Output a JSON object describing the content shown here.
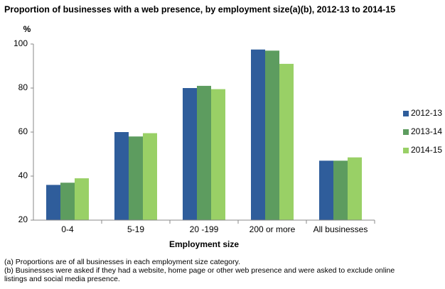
{
  "chart_data": {
    "type": "bar",
    "title": "Proportion of businesses  with a web presence, by employment size(a)(b),  2012-13  to 2014-15",
    "y_label": "%",
    "x_label": "Employment size",
    "categories": [
      "0-4",
      "5-19",
      "20 -199",
      "200 or more",
      "All businesses"
    ],
    "series": [
      {
        "name": "2012-13",
        "color": "#2f5d9b",
        "values": [
          36,
          60,
          80,
          97.5,
          47
        ]
      },
      {
        "name": "2013-14",
        "color": "#5d9c5f",
        "values": [
          37,
          58,
          81,
          97,
          47
        ]
      },
      {
        "name": "2014-15",
        "color": "#99d066",
        "values": [
          39,
          59.5,
          79.5,
          91,
          48.5
        ]
      }
    ],
    "ylim": [
      20,
      100
    ],
    "yticks": [
      20,
      40,
      60,
      80,
      100
    ],
    "grid": false,
    "legend": "right",
    "notes": [
      "(a) Proportions are of all businesses in each employment  size category.",
      "(b) Businesses were asked if they had a website, home page or other web presence and were asked to exclude online listings and social media presence."
    ]
  }
}
